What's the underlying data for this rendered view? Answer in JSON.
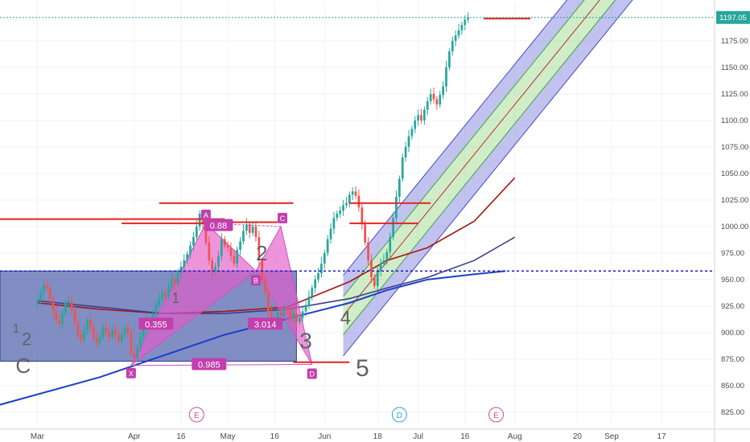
{
  "chart_data": {
    "type": "candlestick",
    "y_axis": {
      "ticks": [
        825,
        850,
        875,
        900,
        925,
        950,
        975,
        1000,
        1025,
        1050,
        1075,
        1100,
        1125,
        1150,
        1175
      ],
      "range": [
        812,
        1212
      ],
      "current_price_label": "1197.05",
      "current_price": 1197.05
    },
    "x_axis": {
      "labels": [
        "Mar",
        "Apr",
        "16",
        "May",
        "16",
        "Jun",
        "18",
        "Jul",
        "16",
        "Aug",
        "20",
        "Sep",
        "17"
      ],
      "label_days": [
        0,
        31,
        46,
        61,
        76,
        92,
        109,
        122,
        137,
        153,
        173,
        184,
        200
      ],
      "range_days": [
        -12,
        217
      ]
    },
    "price_series": {
      "start": "2018-03-01",
      "day_step": 1,
      "closes": [
        930,
        938,
        945,
        942,
        932,
        920,
        912,
        908,
        918,
        928,
        930,
        922,
        910,
        898,
        893,
        902,
        912,
        905,
        895,
        890,
        896,
        905,
        900,
        896,
        903,
        898,
        892,
        898,
        905,
        900,
        880,
        876,
        886,
        896,
        905,
        912,
        908,
        918,
        926,
        932,
        938,
        934,
        944,
        950,
        946,
        956,
        962,
        968,
        974,
        982,
        990,
        1000,
        1012,
        1002,
        985,
        968,
        958,
        962,
        972,
        988,
        982,
        980,
        972,
        965,
        978,
        986,
        996,
        1002,
        994,
        1000,
        990,
        968,
        950,
        938,
        920,
        906,
        912,
        919,
        916,
        922,
        921,
        913,
        918,
        910,
        914,
        920,
        925,
        934,
        942,
        950,
        956,
        965,
        975,
        988,
        998,
        1008,
        1012,
        1015,
        1020,
        1022,
        1030,
        1033,
        1029,
        1018,
        1002,
        985,
        968,
        952,
        944,
        958,
        965,
        968,
        976,
        990,
        1008,
        1028,
        1045,
        1065,
        1075,
        1085,
        1092,
        1100,
        1105,
        1100,
        1110,
        1118,
        1125,
        1120,
        1115,
        1124,
        1132,
        1150,
        1165,
        1175,
        1180,
        1185,
        1190,
        1195,
        1197
      ]
    },
    "moving_averages": [
      {
        "color": "#a31515",
        "x": [
          0,
          20,
          40,
          60,
          80,
          100,
          112,
          125,
          140,
          153
        ],
        "y": [
          928,
          922,
          918,
          920,
          924,
          948,
          968,
          980,
          1005,
          1046
        ]
      },
      {
        "color": "#3c3c8a",
        "x": [
          0,
          20,
          40,
          60,
          80,
          100,
          112,
          125,
          140,
          153
        ],
        "y": [
          930,
          924,
          918,
          918,
          922,
          932,
          942,
          952,
          968,
          990
        ]
      },
      {
        "color": "#1e3fc8",
        "x": [
          -12,
          20,
          40,
          60,
          80,
          100,
          112,
          125,
          140,
          150
        ],
        "y": [
          832,
          858,
          878,
          898,
          913,
          928,
          940,
          950,
          955,
          958
        ]
      }
    ],
    "regression_channel": {
      "x": [
        98,
        240
      ],
      "mid": [
        916,
        1430
      ],
      "half_width_inner": 18,
      "half_width_outer": 38
    },
    "support_line": 958,
    "horizontal_resistance": [
      {
        "x": [
          -12,
          60
        ],
        "y": 1007
      },
      {
        "x": [
          27,
          60
        ],
        "y": 1003
      },
      {
        "x": [
          39,
          82
        ],
        "y": 1022
      },
      {
        "x": [
          55,
          77
        ],
        "y": 1004
      },
      {
        "x": [
          82,
          100
        ],
        "y": 872
      },
      {
        "x": [
          100,
          122
        ],
        "y": 1003
      },
      {
        "x": [
          100,
          126
        ],
        "y": 1022
      },
      {
        "x": [
          143,
          158
        ],
        "y": 1196
      }
    ],
    "blue_range_box": {
      "x": [
        -12,
        83
      ],
      "y": [
        873,
        958
      ]
    },
    "harmonic_pattern": {
      "points": {
        "X": [
          30,
          869
        ],
        "A": [
          54,
          1003
        ],
        "B": [
          70,
          958
        ],
        "C": [
          78,
          1000
        ],
        "D": [
          88,
          870
        ]
      },
      "point_labels": [
        "X",
        "A",
        "B",
        "C",
        "D"
      ],
      "ratios": [
        "0.88",
        "0.355",
        "3.014",
        "0.985"
      ]
    },
    "wave_labels": [
      "C",
      "2",
      "1",
      "2",
      "1",
      "3",
      "4",
      "5"
    ],
    "event_markers": [
      "E",
      "D",
      "E"
    ],
    "annotations": {
      "horizontal_rays": [
        "support",
        "resistance"
      ]
    }
  }
}
